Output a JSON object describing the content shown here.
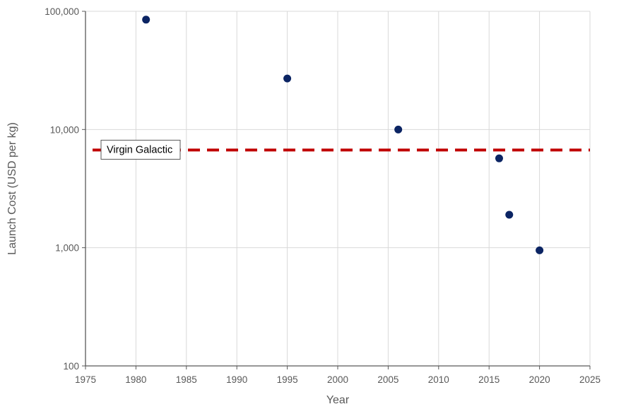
{
  "chart_data": {
    "type": "scatter",
    "xlabel": "Year",
    "ylabel": "Launch Cost (USD per kg)",
    "x_scale": "linear",
    "y_scale": "log",
    "xlim": [
      1975,
      2025
    ],
    "ylim": [
      100,
      100000
    ],
    "x_ticks": [
      1975,
      1980,
      1985,
      1990,
      1995,
      2000,
      2005,
      2010,
      2015,
      2020,
      2025
    ],
    "x_tick_labels": [
      "1975",
      "1980",
      "1985",
      "1990",
      "1995",
      "2000",
      "2005",
      "2010",
      "2015",
      "2020",
      "2025"
    ],
    "y_ticks": [
      100,
      1000,
      10000,
      100000
    ],
    "y_tick_labels": [
      "100",
      "1,000",
      "10,000",
      "100,000"
    ],
    "grid": true,
    "series": [
      {
        "color": "#0b2463",
        "points": [
          {
            "x": 1981,
            "y": 85000
          },
          {
            "x": 1995,
            "y": 27000
          },
          {
            "x": 2006,
            "y": 10000
          },
          {
            "x": 2016,
            "y": 5700
          },
          {
            "x": 2017,
            "y": 1900
          },
          {
            "x": 2020,
            "y": 950
          }
        ]
      }
    ],
    "reference_line": {
      "label": "Virgin Galactic",
      "y": 6700,
      "style": "dashed",
      "color": "#c00000"
    },
    "colors": {
      "grid": "#d9d9d9",
      "axis": "#595959",
      "text": "#595959",
      "annotation_border": "#595959"
    }
  }
}
